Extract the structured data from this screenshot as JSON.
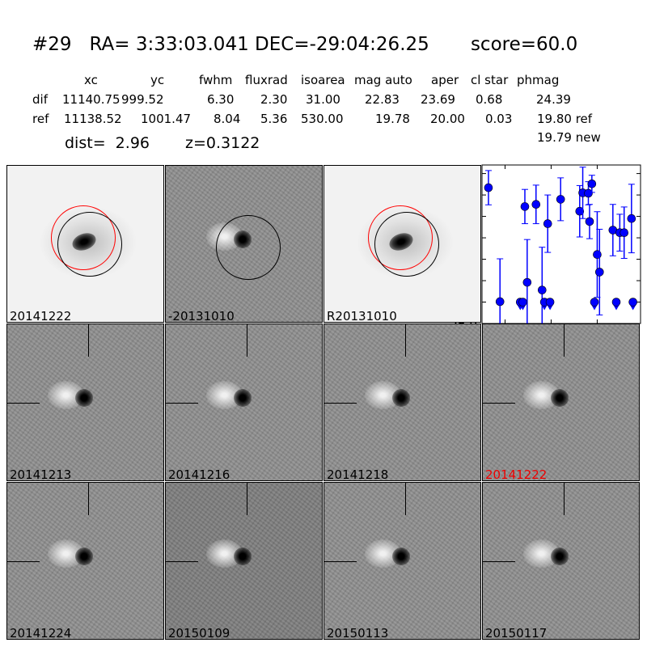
{
  "title": "#29   RA= 3:33:03.041 DEC=-29:04:26.25       score=60.0",
  "table": {
    "headers": [
      "xc",
      "yc",
      "fwhm",
      "fluxrad",
      "isoarea",
      "mag auto",
      "aper",
      "cl star",
      "phmag"
    ],
    "rows": [
      {
        "label": "dif",
        "values": [
          "11140.75",
          "999.52",
          "6.30",
          "2.30",
          "31.00",
          "22.83",
          "23.69",
          "0.68",
          "24.39"
        ]
      },
      {
        "label": "ref",
        "values": [
          "11138.52",
          "1001.47",
          "8.04",
          "5.36",
          "530.00",
          "19.78",
          "20.00",
          "0.03",
          "19.80 ref"
        ]
      }
    ],
    "extra_phmag": "19.79 new",
    "dist": "dist=  2.96",
    "z": "z=0.3122"
  },
  "stamps": [
    {
      "label": "20141222",
      "kind": "image",
      "highlight": false
    },
    {
      "label": "-20131010",
      "kind": "diff",
      "highlight": false
    },
    {
      "label": "R20131010",
      "kind": "image",
      "highlight": false
    },
    {
      "label": "20141213",
      "kind": "diff",
      "highlight": false
    },
    {
      "label": "20141216",
      "kind": "diff",
      "highlight": false
    },
    {
      "label": "20141218",
      "kind": "diff",
      "highlight": false
    },
    {
      "label": "20141222",
      "kind": "diff",
      "highlight": true
    },
    {
      "label": "20141224",
      "kind": "diff",
      "highlight": false
    },
    {
      "label": "20150109",
      "kind": "diff",
      "highlight": false
    },
    {
      "label": "20150113",
      "kind": "diff",
      "highlight": false
    },
    {
      "label": "20150117",
      "kind": "diff",
      "highlight": false
    }
  ],
  "colors": {
    "points": "#0000ff",
    "highlight_label": "#ff0000",
    "circle_red": "#ff0000",
    "circle_black": "#000000"
  },
  "chart_data": {
    "type": "scatter",
    "xlim": [
      -125,
      47
    ],
    "ylim": [
      26.0,
      22.3
    ],
    "y_inverted": true,
    "xticks": [
      "-100",
      "-50",
      "0"
    ],
    "xtick_values": [
      -100,
      -50,
      0
    ],
    "yticks": [
      "22.5",
      "23.0",
      "23.5",
      "24.0",
      "24.5",
      "25.0",
      "25.5",
      "26.0"
    ],
    "ytick_values": [
      22.5,
      23.0,
      23.5,
      24.0,
      24.5,
      25.0,
      25.5,
      26.0
    ],
    "detections": [
      {
        "x": -118,
        "y": 22.83,
        "err": 0.4
      },
      {
        "x": -105.5,
        "y": 25.49,
        "err": 1.0
      },
      {
        "x": -78.5,
        "y": 23.27,
        "err": 0.4
      },
      {
        "x": -76,
        "y": 25.04,
        "err": 1.0
      },
      {
        "x": -66.4,
        "y": 23.22,
        "err": 0.45
      },
      {
        "x": -59.8,
        "y": 25.22,
        "err": 1.0
      },
      {
        "x": -53.7,
        "y": 23.67,
        "err": 0.67
      },
      {
        "x": -39.7,
        "y": 23.1,
        "err": 0.5
      },
      {
        "x": -19,
        "y": 23.38,
        "err": 0.6
      },
      {
        "x": -15.7,
        "y": 22.95,
        "err": 0.6
      },
      {
        "x": -9.6,
        "y": 22.96,
        "err": 0.27
      },
      {
        "x": -8.3,
        "y": 23.62,
        "err": 0.4
      },
      {
        "x": -5.8,
        "y": 22.74,
        "err": 0.2
      },
      {
        "x": 0,
        "y": 24.39,
        "err": 1.0
      },
      {
        "x": 2.5,
        "y": 24.8,
        "err": 1.0
      },
      {
        "x": 17,
        "y": 23.82,
        "err": 0.6
      },
      {
        "x": 24.5,
        "y": 23.88,
        "err": 0.43
      },
      {
        "x": 29.2,
        "y": 23.88,
        "err": 0.6
      },
      {
        "x": 37.2,
        "y": 23.55,
        "err": 0.8
      }
    ],
    "upper_limits": [
      {
        "x": -83.5,
        "y": 25.5
      },
      {
        "x": -80.7,
        "y": 25.5
      },
      {
        "x": -57.3,
        "y": 25.5
      },
      {
        "x": -51.2,
        "y": 25.5
      },
      {
        "x": -3,
        "y": 25.5
      },
      {
        "x": 20.7,
        "y": 25.5
      },
      {
        "x": 38.8,
        "y": 25.5
      }
    ]
  }
}
